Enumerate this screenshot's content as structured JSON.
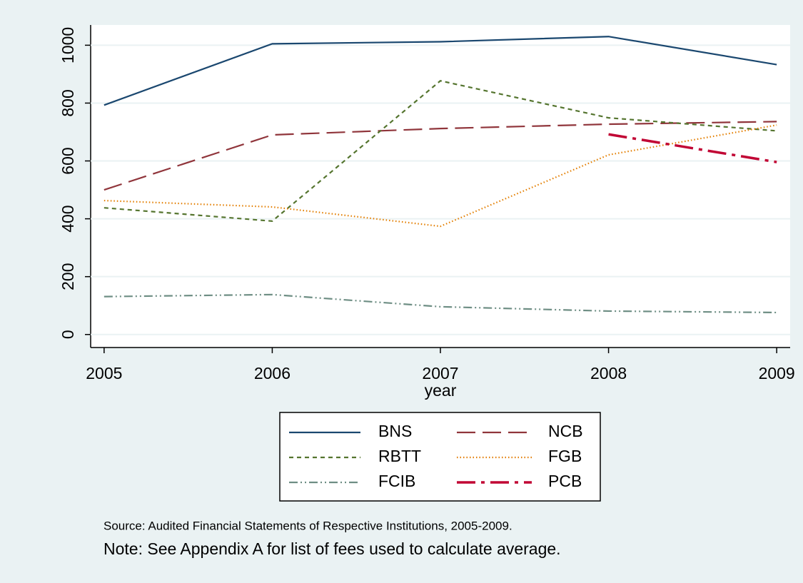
{
  "chart_data": {
    "type": "line",
    "x_label": "year",
    "x": [
      2005,
      2006,
      2007,
      2008,
      2009
    ],
    "xlim": [
      2004.92,
      2009.08
    ],
    "xticks": [
      2005,
      2006,
      2007,
      2008,
      2009
    ],
    "ylim": [
      -45,
      1070
    ],
    "yticks": [
      0,
      200,
      400,
      600,
      800,
      1000
    ],
    "grid": true,
    "legend": "bottom",
    "series": [
      {
        "name": "BNS",
        "color": "#1a476f",
        "dash": "solid",
        "values": [
          793,
          1005,
          1012,
          1030,
          933
        ]
      },
      {
        "name": "NCB",
        "color": "#90353b",
        "dash": "longdash",
        "values": [
          500,
          690,
          712,
          727,
          736
        ]
      },
      {
        "name": "RBTT",
        "color": "#55752f",
        "dash": "shortdash",
        "values": [
          438,
          392,
          877,
          749,
          704
        ]
      },
      {
        "name": "FGB",
        "color": "#e37e00",
        "dash": "dot",
        "values": [
          463,
          441,
          374,
          621,
          724
        ]
      },
      {
        "name": "FCIB",
        "color": "#6e8e84",
        "dash": "dashdotdot",
        "values": [
          131,
          138,
          96,
          81,
          76
        ]
      },
      {
        "name": "PCB",
        "color": "#c10534",
        "dash": "longdashdot",
        "values": [
          null,
          null,
          null,
          692,
          596
        ]
      }
    ],
    "source": "Source: Audited Financial Statements of Respective Institutions, 2005-2009.",
    "note": "Note: See Appendix A for list of fees used to calculate average."
  }
}
